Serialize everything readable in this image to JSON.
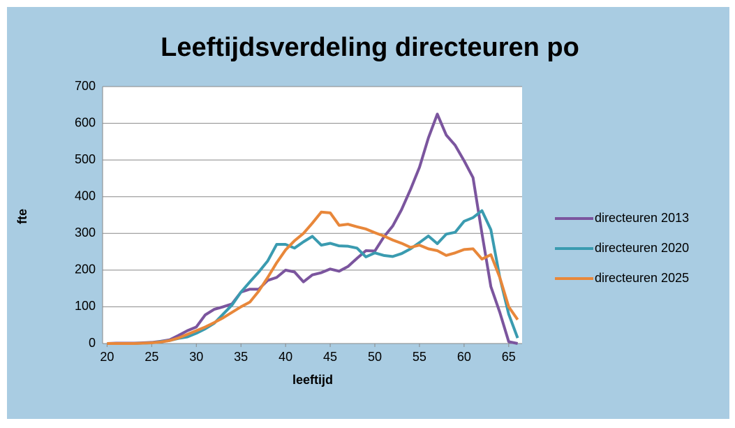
{
  "chart_data": {
    "type": "line",
    "title": "Leeftijdsverdeling directeuren po",
    "xlabel": "leeftijd",
    "ylabel": "fte",
    "x": [
      20,
      21,
      22,
      23,
      24,
      25,
      26,
      27,
      28,
      29,
      30,
      31,
      32,
      33,
      34,
      35,
      36,
      37,
      38,
      39,
      40,
      41,
      42,
      43,
      44,
      45,
      46,
      47,
      48,
      49,
      50,
      51,
      52,
      53,
      54,
      55,
      56,
      57,
      58,
      59,
      60,
      61,
      62,
      63,
      64,
      65,
      66
    ],
    "series": [
      {
        "name": "directeuren 2013",
        "color": "#7b559e",
        "values": [
          0,
          1,
          1,
          1,
          2,
          3,
          6,
          10,
          22,
          35,
          45,
          78,
          93,
          100,
          108,
          140,
          148,
          148,
          172,
          180,
          200,
          195,
          168,
          187,
          193,
          203,
          197,
          210,
          232,
          253,
          252,
          290,
          320,
          365,
          420,
          480,
          560,
          625,
          568,
          540,
          498,
          452,
          300,
          155,
          85,
          5,
          0
        ]
      },
      {
        "name": "directeuren 2020",
        "color": "#3a9bb0",
        "values": [
          0,
          0,
          0,
          0,
          1,
          2,
          5,
          8,
          14,
          18,
          28,
          40,
          55,
          80,
          105,
          140,
          168,
          195,
          225,
          270,
          270,
          260,
          277,
          292,
          268,
          273,
          266,
          265,
          260,
          236,
          247,
          240,
          237,
          245,
          258,
          275,
          293,
          272,
          298,
          303,
          333,
          343,
          362,
          310,
          180,
          80,
          15
        ]
      },
      {
        "name": "directeuren 2025",
        "color": "#e8873a",
        "values": [
          0,
          0,
          0,
          0,
          1,
          2,
          4,
          8,
          15,
          25,
          35,
          45,
          57,
          70,
          85,
          100,
          113,
          143,
          180,
          220,
          255,
          280,
          300,
          328,
          358,
          356,
          322,
          325,
          318,
          312,
          302,
          293,
          282,
          273,
          262,
          268,
          258,
          253,
          240,
          247,
          256,
          258,
          230,
          242,
          180,
          100,
          65
        ]
      }
    ],
    "xlim": [
      19.5,
      66.5
    ],
    "xticks": [
      20,
      25,
      30,
      35,
      40,
      45,
      50,
      55,
      60,
      65
    ],
    "ylim": [
      0,
      700
    ],
    "yticks": [
      0,
      100,
      200,
      300,
      400,
      500,
      600,
      700
    ],
    "grid": true,
    "legend": "right"
  }
}
